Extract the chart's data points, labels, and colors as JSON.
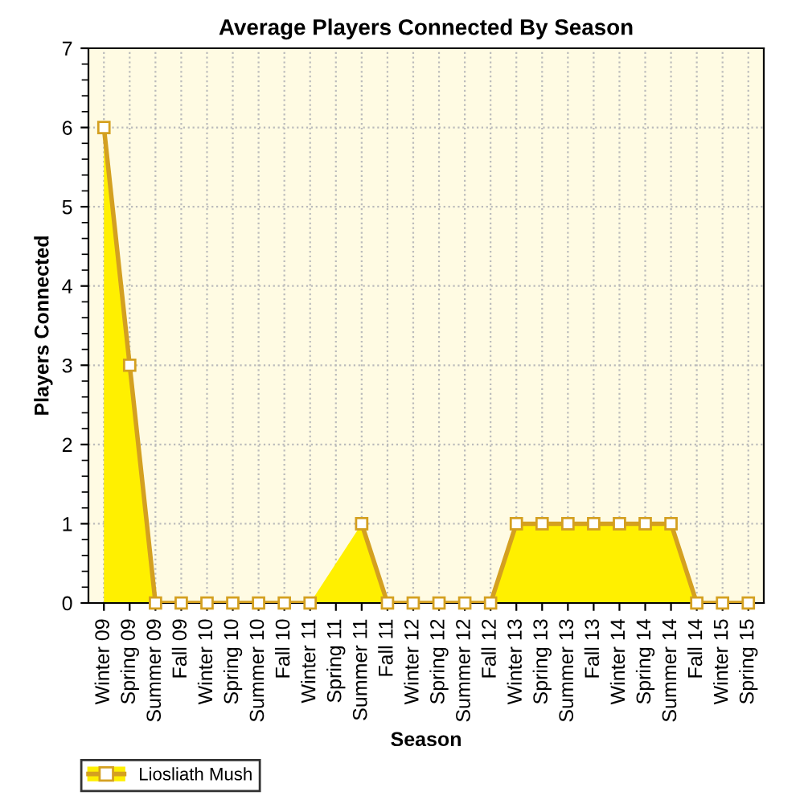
{
  "chart_data": {
    "type": "area",
    "title": "Average Players Connected By Season",
    "xlabel": "Season",
    "ylabel": "Players Connected",
    "categories": [
      "Winter 09",
      "Spring 09",
      "Summer 09",
      "Fall 09",
      "Winter 10",
      "Spring 10",
      "Summer 10",
      "Fall 10",
      "Winter 11",
      "Spring 11",
      "Summer 11",
      "Fall 11",
      "Winter 12",
      "Spring 12",
      "Summer 12",
      "Fall 12",
      "Winter 13",
      "Spring 13",
      "Summer 13",
      "Fall 13",
      "Winter 14",
      "Spring 14",
      "Summer 14",
      "Fall 14",
      "Winter 15",
      "Spring 15"
    ],
    "series": [
      {
        "name": "Liosliath Mush",
        "color": "#fff000",
        "values": [
          6,
          3,
          0,
          0,
          0,
          0,
          0,
          0,
          0,
          null,
          1,
          0,
          0,
          0,
          0,
          0,
          1,
          1,
          1,
          1,
          1,
          1,
          1,
          0,
          0,
          0
        ]
      }
    ],
    "ylim": [
      0,
      7
    ],
    "yticks": [
      0,
      1,
      2,
      3,
      4,
      5,
      6,
      7
    ],
    "grid": true,
    "legend": "bottom left",
    "marker": "square",
    "line_style": "solid"
  }
}
